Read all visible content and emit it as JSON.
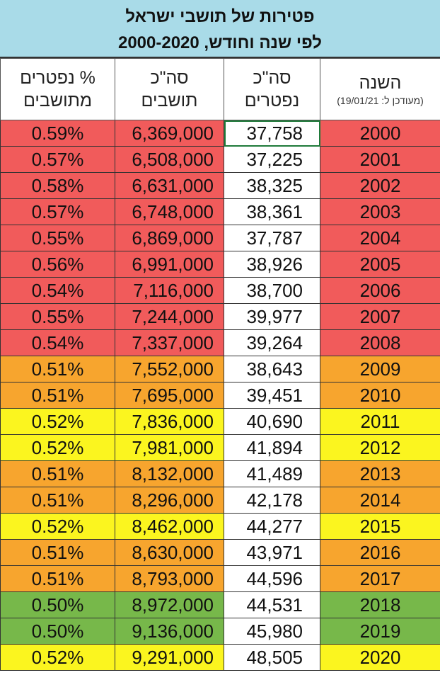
{
  "title": {
    "line1": "פטירות של תושבי ישראל",
    "line2": "לפי שנה וחודש, 2000-2020"
  },
  "headers": {
    "year": "השנה",
    "year_sub": "(מעודכן ל: 19/01/21)",
    "deaths_line1": "סה\"כ",
    "deaths_line2": "נפטרים",
    "population_line1": "סה\"כ",
    "population_line2": "תושבים",
    "pct_line1": "% נפטרים",
    "pct_line2": "מתושבים"
  },
  "colors": {
    "red": "#f15b5b",
    "orange": "#f7a52e",
    "yellow": "#fbf51f",
    "green": "#77b84a",
    "title_bg": "#a9dbe8"
  },
  "rows": [
    {
      "year": "2000",
      "deaths": "37,758",
      "population": "6,369,000",
      "pct": "0.59%",
      "color": "red"
    },
    {
      "year": "2001",
      "deaths": "37,225",
      "population": "6,508,000",
      "pct": "0.57%",
      "color": "red"
    },
    {
      "year": "2002",
      "deaths": "38,325",
      "population": "6,631,000",
      "pct": "0.58%",
      "color": "red"
    },
    {
      "year": "2003",
      "deaths": "38,361",
      "population": "6,748,000",
      "pct": "0.57%",
      "color": "red"
    },
    {
      "year": "2004",
      "deaths": "37,787",
      "population": "6,869,000",
      "pct": "0.55%",
      "color": "red"
    },
    {
      "year": "2005",
      "deaths": "38,926",
      "population": "6,991,000",
      "pct": "0.56%",
      "color": "red"
    },
    {
      "year": "2006",
      "deaths": "38,700",
      "population": "7,116,000",
      "pct": "0.54%",
      "color": "red"
    },
    {
      "year": "2007",
      "deaths": "39,977",
      "population": "7,244,000",
      "pct": "0.55%",
      "color": "red"
    },
    {
      "year": "2008",
      "deaths": "39,264",
      "population": "7,337,000",
      "pct": "0.54%",
      "color": "red"
    },
    {
      "year": "2009",
      "deaths": "38,643",
      "population": "7,552,000",
      "pct": "0.51%",
      "color": "orange"
    },
    {
      "year": "2010",
      "deaths": "39,451",
      "population": "7,695,000",
      "pct": "0.51%",
      "color": "orange"
    },
    {
      "year": "2011",
      "deaths": "40,690",
      "population": "7,836,000",
      "pct": "0.52%",
      "color": "yellow"
    },
    {
      "year": "2012",
      "deaths": "41,894",
      "population": "7,981,000",
      "pct": "0.52%",
      "color": "yellow"
    },
    {
      "year": "2013",
      "deaths": "41,489",
      "population": "8,132,000",
      "pct": "0.51%",
      "color": "orange"
    },
    {
      "year": "2014",
      "deaths": "42,178",
      "population": "8,296,000",
      "pct": "0.51%",
      "color": "orange"
    },
    {
      "year": "2015",
      "deaths": "44,277",
      "population": "8,462,000",
      "pct": "0.52%",
      "color": "yellow"
    },
    {
      "year": "2016",
      "deaths": "43,971",
      "population": "8,630,000",
      "pct": "0.51%",
      "color": "orange"
    },
    {
      "year": "2017",
      "deaths": "44,596",
      "population": "8,793,000",
      "pct": "0.51%",
      "color": "orange"
    },
    {
      "year": "2018",
      "deaths": "44,531",
      "population": "8,972,000",
      "pct": "0.50%",
      "color": "green"
    },
    {
      "year": "2019",
      "deaths": "45,980",
      "population": "9,136,000",
      "pct": "0.50%",
      "color": "green"
    },
    {
      "year": "2020",
      "deaths": "48,505",
      "population": "9,291,000",
      "pct": "0.52%",
      "color": "yellow"
    }
  ]
}
